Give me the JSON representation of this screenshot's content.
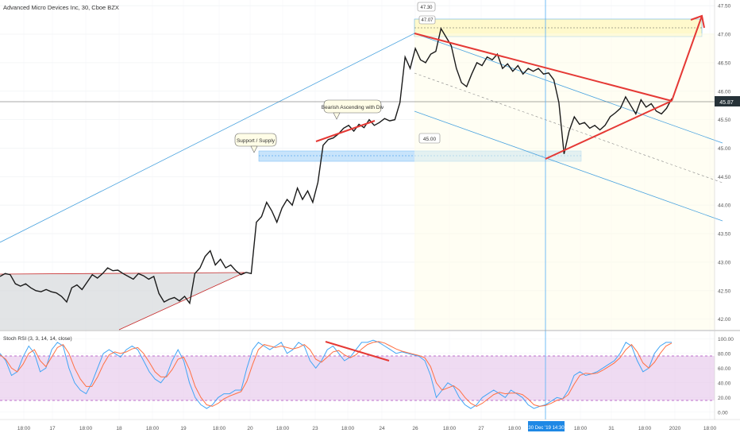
{
  "header": {
    "title": "Advanced Micro Devices Inc, 30, Cboe BZX"
  },
  "colors": {
    "price_line": "#1a1a1a",
    "red_line": "#e53935",
    "blue_line": "#4aa3df",
    "support_band": "#bbdefb",
    "target_band": "#fff9c4",
    "rsi_band": "#e1bee7",
    "k_line": "#42a5f5",
    "d_line": "#ff7043",
    "crosshair": "#64b5f6",
    "last_price_bg": "#263238"
  },
  "chart_data": [
    {
      "type": "line",
      "title": "Advanced Micro Devices Inc, 30, Cboe BZX",
      "ylim": [
        41.8,
        47.6
      ],
      "y_ticks": [
        "47.50",
        "47.00",
        "46.50",
        "46.00",
        "45.50",
        "45.00",
        "44.50",
        "44.00",
        "43.50",
        "43.00",
        "42.50",
        "42.00"
      ],
      "y_tick_values": [
        47.5,
        47.0,
        46.5,
        46.0,
        45.5,
        45.0,
        44.5,
        44.0,
        43.5,
        43.0,
        42.5,
        42.0
      ],
      "last_price_label": "45.87",
      "last_price": 45.87,
      "series": [
        {
          "values": [
            42.75,
            42.8,
            42.78,
            42.62,
            42.58,
            42.62,
            42.55,
            42.5,
            42.48,
            42.52,
            42.48,
            42.46,
            42.4,
            42.3,
            42.55,
            42.6,
            42.52,
            42.65,
            42.78,
            42.72,
            42.8,
            42.9,
            42.85,
            42.86,
            42.8,
            42.75,
            42.7,
            42.8,
            42.76,
            42.7,
            42.75,
            42.45,
            42.3,
            42.35,
            42.38,
            42.32,
            42.4,
            42.28,
            42.8,
            42.9,
            43.1,
            43.2,
            42.95,
            43.05,
            42.9,
            42.95,
            42.85,
            42.78,
            42.82,
            42.8,
            43.7,
            43.8,
            44.05,
            43.9,
            43.7,
            43.95,
            44.1,
            44.0,
            44.3,
            44.1,
            44.25,
            44.05,
            44.4,
            45.05,
            45.15,
            45.18,
            45.25,
            45.35,
            45.4,
            45.3,
            45.42,
            45.36,
            45.5,
            45.4,
            45.45,
            45.52,
            45.48,
            45.5,
            45.8,
            46.6,
            46.4,
            46.75,
            46.55,
            46.5,
            46.65,
            46.7,
            47.1,
            46.95,
            46.8,
            46.4,
            46.15,
            46.08,
            46.3,
            46.5,
            46.45,
            46.6,
            46.55,
            46.65,
            46.4,
            46.48,
            46.35,
            46.45,
            46.3,
            46.4,
            46.35,
            46.4,
            46.3,
            46.32,
            46.2,
            45.8,
            44.9,
            45.3,
            45.55,
            45.42,
            45.45,
            45.35,
            45.4,
            45.32,
            45.4,
            45.55,
            45.62,
            45.7,
            45.9,
            45.75,
            45.6,
            45.85,
            45.72,
            45.78,
            45.65,
            45.6,
            45.7,
            45.87
          ]
        }
      ],
      "x_tick_labels": [
        "18:00",
        "17",
        "18:00",
        "18",
        "18:00",
        "19",
        "18:00",
        "20",
        "18:00",
        "23",
        "18:00",
        "24",
        "26",
        "18:00",
        "27",
        "18:00",
        "18:00",
        "31",
        "18:00",
        "2020",
        "18:00"
      ],
      "crosshair_label": "30 Dec '19   14:30",
      "annotations": [
        {
          "text": "Support / Supply"
        },
        {
          "text": "Bearish Ascending with Div"
        },
        {
          "text": "45.00",
          "value": 45.0
        },
        {
          "text": "47.30",
          "value": 47.3
        },
        {
          "text": "47.07",
          "value": 47.07
        }
      ]
    },
    {
      "type": "line",
      "title": "Stoch RSI (3, 3, 14, 14, close)",
      "ylim": [
        -10,
        110
      ],
      "y_ticks": [
        "100.00",
        "80.00",
        "60.00",
        "40.00",
        "20.00",
        "0.00"
      ],
      "y_tick_values": [
        100,
        80,
        60,
        40,
        20,
        0
      ],
      "band": [
        20,
        80
      ],
      "series": [
        {
          "values": [
            80,
            70,
            50,
            55,
            75,
            90,
            80,
            55,
            60,
            85,
            95,
            90,
            60,
            40,
            30,
            25,
            40,
            60,
            80,
            85,
            80,
            75,
            85,
            90,
            85,
            70,
            55,
            45,
            40,
            50,
            70,
            85,
            70,
            40,
            20,
            10,
            5,
            10,
            20,
            25,
            25,
            30,
            30,
            60,
            85,
            95,
            90,
            85,
            90,
            95,
            80,
            85,
            95,
            90,
            70,
            60,
            70,
            85,
            90,
            80,
            70,
            75,
            85,
            95,
            95,
            98,
            95,
            90,
            85,
            80,
            82,
            80,
            78,
            76,
            70,
            50,
            20,
            30,
            40,
            35,
            20,
            10,
            5,
            10,
            20,
            25,
            30,
            25,
            20,
            30,
            25,
            20,
            10,
            5,
            8,
            10,
            15,
            20,
            18,
            30,
            50,
            55,
            50,
            52,
            55,
            60,
            65,
            70,
            80,
            95,
            90,
            70,
            55,
            60,
            80,
            90,
            95,
            95
          ]
        },
        {
          "values": [
            78,
            72,
            60,
            55,
            65,
            80,
            85,
            70,
            62,
            75,
            88,
            92,
            80,
            60,
            45,
            35,
            35,
            48,
            65,
            78,
            82,
            80,
            82,
            86,
            88,
            80,
            68,
            55,
            48,
            48,
            58,
            72,
            75,
            58,
            35,
            20,
            10,
            8,
            12,
            18,
            22,
            25,
            28,
            42,
            65,
            85,
            92,
            90,
            88,
            90,
            88,
            86,
            88,
            92,
            85,
            72,
            68,
            75,
            82,
            84,
            78,
            74,
            78,
            86,
            92,
            95,
            96,
            94,
            90,
            86,
            83,
            81,
            79,
            77,
            74,
            62,
            40,
            30,
            33,
            36,
            30,
            20,
            12,
            8,
            12,
            18,
            24,
            27,
            25,
            26,
            26,
            24,
            18,
            10,
            8,
            9,
            12,
            16,
            18,
            24,
            38,
            50,
            53,
            52,
            53,
            57,
            62,
            67,
            74,
            85,
            92,
            82,
            67,
            60,
            68,
            80,
            90,
            94
          ]
        }
      ]
    }
  ]
}
